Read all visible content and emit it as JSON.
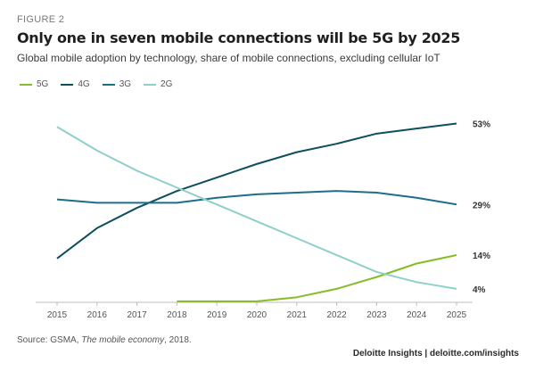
{
  "figure_label": "FIGURE 2",
  "title": "Only one in seven mobile connections will be 5G by 2025",
  "subtitle": "Global mobile adoption by technology, share of mobile connections, excluding cellular IoT",
  "source_prefix": "Source: GSMA, ",
  "source_italic": "The mobile economy",
  "source_suffix": ", 2018.",
  "credit": "Deloitte Insights | deloitte.com/insights",
  "colors": {
    "5G": "#86bc25",
    "4G": "#0d4f5c",
    "3G": "#1d6e8a",
    "2G": "#8fcfcb"
  },
  "chart_data": {
    "type": "line",
    "x": [
      2015,
      2016,
      2017,
      2018,
      2019,
      2020,
      2021,
      2022,
      2023,
      2024,
      2025
    ],
    "ylim": [
      0,
      60
    ],
    "series": [
      {
        "name": "5G",
        "values": [
          null,
          null,
          null,
          0.3,
          0.3,
          0.3,
          1.5,
          4,
          7.5,
          11.5,
          14
        ]
      },
      {
        "name": "4G",
        "values": [
          13,
          22,
          28,
          33,
          37,
          41,
          44.5,
          47,
          50,
          51.5,
          53
        ]
      },
      {
        "name": "3G",
        "values": [
          30.5,
          29.5,
          29.5,
          29.5,
          31,
          32,
          32.5,
          33,
          32.5,
          31,
          29
        ]
      },
      {
        "name": "2G",
        "values": [
          52,
          45,
          39,
          34,
          29,
          24,
          19,
          14,
          9,
          6,
          4
        ]
      }
    ],
    "end_labels": [
      "14%",
      "53%",
      "29%",
      "4%"
    ],
    "legend": "top-left",
    "grid": false
  }
}
